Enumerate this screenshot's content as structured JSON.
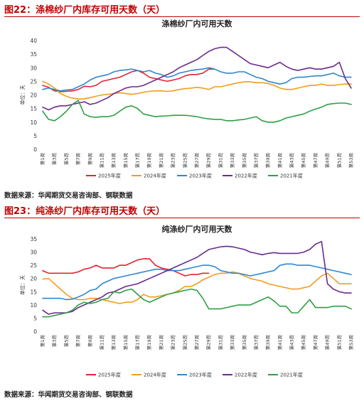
{
  "figures": [
    {
      "caption": "图22：涤棉纱厂内库存可用天数（天）",
      "source": "数据来源：华闻期货交易咨询部、钢联数据"
    },
    {
      "caption": "图23：纯涤纱厂内库存可用天数（天）",
      "source": "数据来源：华闻期货交易咨询部、钢联数据"
    }
  ],
  "chart_data": [
    {
      "type": "line",
      "title": "涤棉纱厂内可用天数",
      "ylabel": "单位：天",
      "ylim": [
        0,
        40
      ],
      "yticks": [
        0,
        5,
        10,
        15,
        20,
        25,
        30,
        35,
        40
      ],
      "x_count": 53,
      "xtick_labels": [
        "第1周",
        "第3周",
        "第5周",
        "第7周",
        "第9周",
        "第11周",
        "第13周",
        "第15周",
        "第17周",
        "第19周",
        "第21周",
        "第23周",
        "第25周",
        "第27周",
        "第29周",
        "第31周",
        "第33周",
        "第35周",
        "第37周",
        "第39周",
        "第41周",
        "第43周",
        "第45周",
        "第47周",
        "第49周",
        "第51周",
        "第53周"
      ],
      "grid": false,
      "legend_position": "bottom",
      "series": [
        {
          "name": "2025年度",
          "color": "#e8212e",
          "values": [
            23.5,
            22.8,
            21.5,
            21.2,
            21.3,
            21.5,
            22,
            23.2,
            23,
            23.5,
            25,
            25.5,
            26,
            26.5,
            27.5,
            28.5,
            29,
            28,
            26.5,
            26,
            25.5,
            25,
            25.5,
            26,
            27,
            27.5,
            27.5,
            28,
            29.5,
            29.5
          ]
        },
        {
          "name": "2024年度",
          "color": "#f39c1f",
          "values": [
            25,
            24,
            22.5,
            20.5,
            19.5,
            18.8,
            18.5,
            18.5,
            19,
            19.5,
            20,
            20.2,
            20.5,
            20.8,
            20.5,
            20.2,
            20.5,
            21,
            21.3,
            21.5,
            21.5,
            21.3,
            21.5,
            22,
            22.3,
            22.5,
            22.8,
            22.5,
            22,
            23,
            23,
            23.5,
            24,
            24.5,
            24.8,
            24.8,
            24.5,
            24.5,
            24.2,
            23.5,
            22.5,
            22,
            22,
            22.5,
            23,
            23.5,
            23.5,
            24,
            23.5,
            23.5,
            23.8,
            24,
            24
          ]
        },
        {
          "name": "2023年度",
          "color": "#2e86d0",
          "values": [
            22,
            22.5,
            22,
            21.5,
            21.8,
            22,
            23,
            24,
            25.5,
            26.5,
            27,
            27.5,
            28.5,
            29,
            29.2,
            29.5,
            29,
            28.5,
            29,
            28,
            27.5,
            26.5,
            27,
            28,
            28.5,
            29,
            29.3,
            29.5,
            30,
            29.5,
            28.5,
            28,
            28,
            28.5,
            28.5,
            27.5,
            26.5,
            26,
            25,
            24.5,
            24,
            24.5,
            26,
            26.5,
            26.5,
            26.8,
            27,
            27,
            27.5,
            28,
            27,
            26.5,
            26.5
          ]
        },
        {
          "name": "2022年度",
          "color": "#6a2a8e",
          "values": [
            15.5,
            14.5,
            15.5,
            16,
            16,
            16.5,
            17,
            17.5,
            16.5,
            17,
            18,
            19,
            20.5,
            21.5,
            22.5,
            23,
            23,
            23.5,
            24.5,
            25.5,
            26.5,
            27.5,
            28.5,
            30,
            31,
            32,
            33,
            34.5,
            36,
            37,
            37.5,
            37.5,
            36,
            34.5,
            33,
            31.5,
            31,
            30.5,
            30,
            31,
            32,
            30.5,
            29.5,
            29,
            29.5,
            30,
            29.5,
            29.5,
            30,
            30.5,
            32,
            26,
            22.5
          ]
        },
        {
          "name": "2021年度",
          "color": "#2ea043",
          "values": [
            14,
            11,
            10.5,
            12,
            14,
            16.5,
            18,
            13,
            12,
            11.8,
            12,
            12,
            12.5,
            14,
            15.5,
            16,
            15,
            13,
            12.5,
            12,
            12.2,
            12.3,
            12.5,
            12.5,
            12.5,
            12.3,
            12,
            11.5,
            11.2,
            11,
            11,
            10.5,
            10.5,
            10.8,
            11,
            11.5,
            12,
            10.5,
            10,
            10,
            10.5,
            11.5,
            12,
            12.5,
            13,
            14,
            14.8,
            15.5,
            16.5,
            16.8,
            17,
            17,
            16.5
          ]
        }
      ]
    },
    {
      "type": "line",
      "title": "纯涤纱厂内可用天数",
      "ylabel": "单位：天",
      "ylim": [
        0,
        35
      ],
      "yticks": [
        0,
        5,
        10,
        15,
        20,
        25,
        30,
        35
      ],
      "x_count": 53,
      "xtick_labels": [
        "第1周",
        "第3周",
        "第5周",
        "第7周",
        "第9周",
        "第11周",
        "第13周",
        "第15周",
        "第17周",
        "第19周",
        "第21周",
        "第23周",
        "第25周",
        "第27周",
        "第29周",
        "第31周",
        "第33周",
        "第35周",
        "第37周",
        "第39周",
        "第41周",
        "第43周",
        "第45周",
        "第47周",
        "第49周",
        "第51周",
        "第53周"
      ],
      "grid": false,
      "legend_position": "bottom",
      "series": [
        {
          "name": "2025年度",
          "color": "#e8212e",
          "values": [
            23,
            22,
            22,
            22,
            22,
            22,
            22.5,
            23.5,
            24,
            25,
            24,
            24,
            24,
            25,
            25,
            26,
            27,
            27.5,
            27.5,
            25,
            24,
            23.5,
            23,
            22,
            21,
            21.5,
            21.5,
            22,
            22
          ]
        },
        {
          "name": "2024年度",
          "color": "#f39c1f",
          "values": [
            19.8,
            20,
            18,
            16,
            14,
            12.5,
            12,
            12,
            12.5,
            12.5,
            12,
            11.5,
            11,
            10.5,
            11,
            11,
            12,
            14,
            13,
            13,
            13.5,
            14,
            14.5,
            15.5,
            17,
            17,
            18,
            19.5,
            20.5,
            21.5,
            22,
            22,
            22.5,
            22,
            21,
            20,
            19.5,
            19,
            18,
            17.5,
            17,
            16.5,
            16,
            16,
            16.5,
            17,
            19,
            21,
            22,
            20,
            18,
            18,
            18
          ]
        },
        {
          "name": "2023年度",
          "color": "#2e86d0",
          "values": [
            12.5,
            12.5,
            12.5,
            12.5,
            12,
            12.2,
            13,
            14,
            15.5,
            16,
            18,
            19,
            20,
            20.5,
            21,
            21.5,
            22,
            22.5,
            23,
            23.5,
            23.5,
            23,
            23,
            23,
            23.5,
            24,
            24.5,
            25,
            25,
            24.5,
            23,
            22.5,
            22,
            22,
            21.5,
            21,
            21.5,
            22,
            22.5,
            23,
            25,
            25.5,
            25.5,
            25,
            25,
            25,
            24.5,
            24,
            23.5,
            23,
            22.5,
            22,
            21.5
          ]
        },
        {
          "name": "2022年度",
          "color": "#6a2a8e",
          "values": [
            8,
            6.5,
            7,
            7,
            7,
            7.5,
            9,
            10,
            11,
            12,
            13,
            14.5,
            15,
            16,
            17,
            17.5,
            18,
            19,
            20,
            21,
            22,
            23,
            24,
            25,
            26,
            27,
            28,
            29.5,
            31,
            31.5,
            32,
            32.2,
            32,
            31.5,
            31,
            30,
            29.5,
            29,
            29.5,
            29.8,
            29.5,
            29.5,
            29.5,
            29.5,
            30,
            31,
            33,
            34,
            18,
            16,
            15,
            14.5,
            14.5
          ]
        },
        {
          "name": "2021年度",
          "color": "#2ea043",
          "values": [
            5.5,
            5.5,
            6,
            6.5,
            7,
            8,
            10,
            11,
            10.5,
            11,
            12,
            12.5,
            15,
            14.5,
            15.5,
            16,
            14,
            12,
            11,
            12,
            13,
            14,
            14.5,
            15,
            15.5,
            16,
            15.5,
            12.5,
            8.5,
            8.5,
            8.5,
            9,
            9.5,
            10,
            10,
            10,
            11,
            12,
            13,
            11.5,
            9.5,
            9.5,
            7,
            7,
            9.5,
            12,
            9,
            9,
            9,
            9.5,
            9.5,
            9.5,
            8.5
          ]
        }
      ]
    }
  ]
}
